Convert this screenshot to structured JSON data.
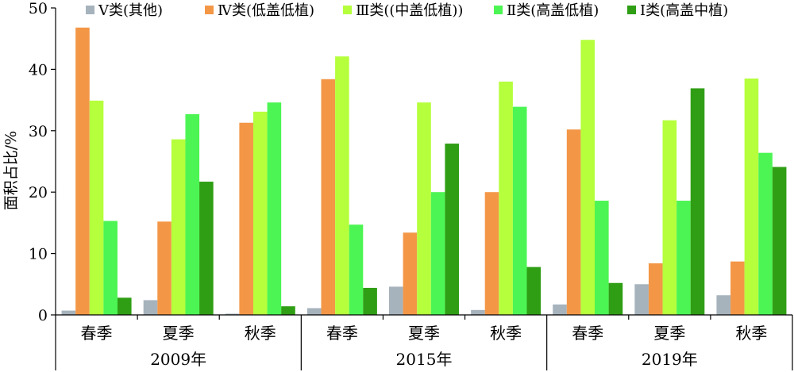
{
  "chart_data": {
    "type": "bar",
    "title": "",
    "xlabel": "",
    "ylabel": "面积占比/%",
    "ylim": [
      0,
      50
    ],
    "yticks": [
      0,
      10,
      20,
      30,
      40,
      50
    ],
    "grid": false,
    "legend_position": "top",
    "groups": [
      {
        "label": "2009年",
        "categories": [
          "春季",
          "夏季",
          "秋季"
        ]
      },
      {
        "label": "2015年",
        "categories": [
          "春季",
          "夏季",
          "秋季"
        ]
      },
      {
        "label": "2019年",
        "categories": [
          "春季",
          "夏季",
          "秋季"
        ]
      }
    ],
    "series": [
      {
        "name": "Ⅴ类(其他)",
        "color": "#a6b3bd",
        "values": [
          0.7,
          2.4,
          0.2,
          1.1,
          4.6,
          0.8,
          1.7,
          5.0,
          3.2
        ]
      },
      {
        "name": "Ⅳ类(低盖低植)",
        "color": "#f39747",
        "values": [
          46.8,
          15.2,
          31.3,
          38.4,
          13.4,
          20.0,
          30.2,
          8.4,
          8.7
        ]
      },
      {
        "name": "Ⅲ类((中盖低植))",
        "color": "#b5ff3c",
        "values": [
          34.9,
          28.6,
          33.1,
          42.1,
          34.6,
          38.0,
          44.8,
          31.7,
          38.5
        ]
      },
      {
        "name": "Ⅱ类(高盖低植)",
        "color": "#4cf553",
        "values": [
          15.3,
          32.7,
          34.6,
          14.7,
          20.0,
          33.9,
          18.6,
          18.6,
          26.4
        ]
      },
      {
        "name": "Ⅰ类(高盖中植)",
        "color": "#2f9e14",
        "values": [
          2.8,
          21.7,
          1.4,
          4.4,
          27.9,
          7.8,
          5.2,
          36.9,
          24.1
        ]
      }
    ]
  }
}
